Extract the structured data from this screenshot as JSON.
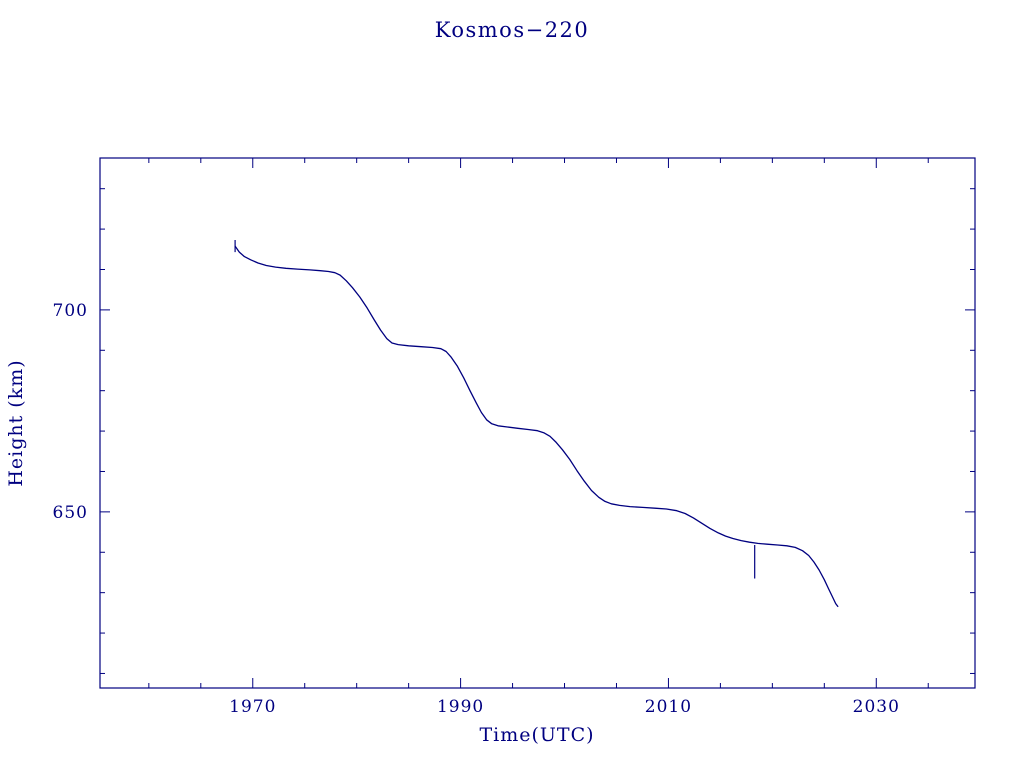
{
  "chart_data": {
    "type": "line",
    "title": "Kosmos−220",
    "xlabel": "Time(UTC)",
    "ylabel": "Height (km)",
    "color": "#000080",
    "background": "#ffffff",
    "grid": false,
    "legend": null,
    "xlim": [
      1955.3,
      2039.5
    ],
    "ylim": [
      606.4,
      737.6
    ],
    "x_major_ticks": [
      1970,
      1990,
      2010,
      2030
    ],
    "x_tick_labels": [
      "1970",
      "1990",
      "2010",
      "2030"
    ],
    "x_minor_ticks": [
      1960,
      1965,
      1975,
      1980,
      1985,
      1995,
      2000,
      2005,
      2015,
      2020,
      2025,
      2035
    ],
    "y_major_ticks": [
      650,
      700
    ],
    "y_tick_labels": [
      "650",
      "700"
    ],
    "y_minor_ticks": [
      610,
      620,
      630,
      640,
      660,
      670,
      680,
      690,
      710,
      720,
      730
    ],
    "series": [
      {
        "name": "orbit-height-km",
        "points": [
          [
            1968.3,
            715.8
          ],
          [
            1968.7,
            714.3
          ],
          [
            1969.2,
            713.2
          ],
          [
            1969.8,
            712.4
          ],
          [
            1970.5,
            711.6
          ],
          [
            1971.3,
            711.0
          ],
          [
            1972.2,
            710.6
          ],
          [
            1973.2,
            710.3
          ],
          [
            1974.3,
            710.1
          ],
          [
            1975.5,
            709.9
          ],
          [
            1976.5,
            709.7
          ],
          [
            1977.3,
            709.5
          ],
          [
            1977.9,
            709.2
          ],
          [
            1978.4,
            708.6
          ],
          [
            1979.0,
            707.2
          ],
          [
            1979.6,
            705.5
          ],
          [
            1980.3,
            703.2
          ],
          [
            1981.0,
            700.5
          ],
          [
            1981.7,
            697.5
          ],
          [
            1982.3,
            695.0
          ],
          [
            1982.9,
            692.9
          ],
          [
            1983.4,
            691.8
          ],
          [
            1984.0,
            691.4
          ],
          [
            1985.0,
            691.1
          ],
          [
            1986.2,
            690.9
          ],
          [
            1987.3,
            690.7
          ],
          [
            1988.1,
            690.4
          ],
          [
            1988.6,
            689.7
          ],
          [
            1989.1,
            688.3
          ],
          [
            1989.7,
            686.0
          ],
          [
            1990.3,
            683.2
          ],
          [
            1990.9,
            680.0
          ],
          [
            1991.5,
            677.0
          ],
          [
            1992.0,
            674.6
          ],
          [
            1992.5,
            672.8
          ],
          [
            1993.0,
            671.8
          ],
          [
            1993.6,
            671.3
          ],
          [
            1994.5,
            671.0
          ],
          [
            1995.5,
            670.7
          ],
          [
            1996.5,
            670.4
          ],
          [
            1997.4,
            670.1
          ],
          [
            1998.0,
            669.6
          ],
          [
            1998.6,
            668.7
          ],
          [
            1999.2,
            667.2
          ],
          [
            1999.8,
            665.4
          ],
          [
            2000.5,
            663.0
          ],
          [
            2001.2,
            660.2
          ],
          [
            2001.9,
            657.6
          ],
          [
            2002.6,
            655.3
          ],
          [
            2003.3,
            653.6
          ],
          [
            2003.9,
            652.6
          ],
          [
            2004.5,
            652.0
          ],
          [
            2005.3,
            651.6
          ],
          [
            2006.3,
            651.3
          ],
          [
            2007.5,
            651.1
          ],
          [
            2008.7,
            650.9
          ],
          [
            2009.8,
            650.7
          ],
          [
            2010.8,
            650.3
          ],
          [
            2011.6,
            649.6
          ],
          [
            2012.4,
            648.5
          ],
          [
            2013.2,
            647.2
          ],
          [
            2014.0,
            645.9
          ],
          [
            2014.8,
            644.8
          ],
          [
            2015.5,
            644.0
          ],
          [
            2016.2,
            643.4
          ],
          [
            2017.0,
            642.9
          ],
          [
            2017.8,
            642.5
          ],
          [
            2018.6,
            642.2
          ],
          [
            2019.5,
            642.0
          ],
          [
            2020.5,
            641.8
          ],
          [
            2021.4,
            641.6
          ],
          [
            2022.2,
            641.2
          ],
          [
            2022.9,
            640.4
          ],
          [
            2023.5,
            639.2
          ],
          [
            2024.0,
            637.6
          ],
          [
            2024.5,
            635.6
          ],
          [
            2025.0,
            633.2
          ],
          [
            2025.4,
            631.0
          ],
          [
            2025.8,
            628.9
          ],
          [
            2026.1,
            627.3
          ],
          [
            2026.3,
            626.6
          ]
        ]
      }
    ],
    "annotations": {
      "segments": [
        {
          "name": "start-tick-mark",
          "x": 1968.3,
          "y1": 717.3,
          "y2": 714.3
        },
        {
          "name": "vertical-spike",
          "x": 2018.3,
          "y1": 641.8,
          "y2": 633.5
        }
      ]
    }
  }
}
